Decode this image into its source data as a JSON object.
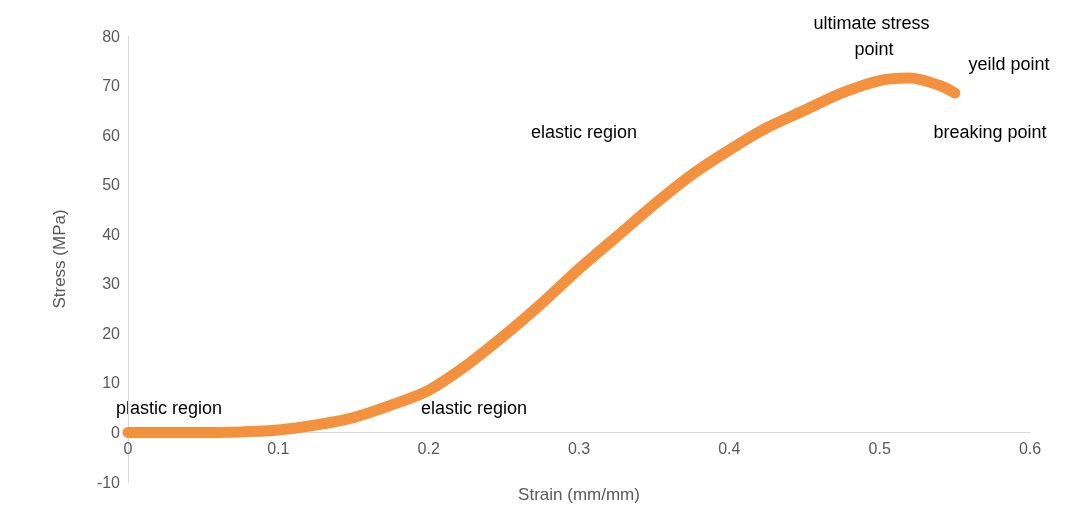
{
  "chart_data": {
    "type": "line",
    "xlabel": "Strain (mm/mm)",
    "ylabel": "Stress (MPa)",
    "x": [
      0,
      0.025,
      0.05,
      0.075,
      0.1,
      0.125,
      0.15,
      0.175,
      0.2,
      0.225,
      0.25,
      0.275,
      0.3,
      0.325,
      0.35,
      0.375,
      0.4,
      0.425,
      0.45,
      0.475,
      0.5,
      0.52,
      0.54,
      0.55
    ],
    "series": [
      {
        "color": "#f4913f",
        "values": [
          0,
          0,
          0,
          0.1,
          0.5,
          1.5,
          3,
          5.5,
          8.5,
          13.5,
          19.5,
          26,
          33,
          39.5,
          46,
          52,
          57,
          61.5,
          65,
          68.5,
          71,
          71.5,
          70,
          68.5
        ]
      }
    ],
    "xlim": [
      0,
      0.6
    ],
    "xticks": [
      0,
      0.1,
      0.2,
      0.3,
      0.4,
      0.5,
      0.6
    ],
    "ylim": [
      -10,
      80
    ],
    "yticks": [
      -10,
      0,
      10,
      20,
      30,
      40,
      50,
      60,
      70,
      80
    ],
    "grid": false,
    "legend": false,
    "marker": "none",
    "line_style": "solid",
    "annotations": [
      "plastic region",
      "elastic region",
      "elastic region",
      "ultimate stress point",
      "yeild point",
      "breaking point"
    ]
  }
}
